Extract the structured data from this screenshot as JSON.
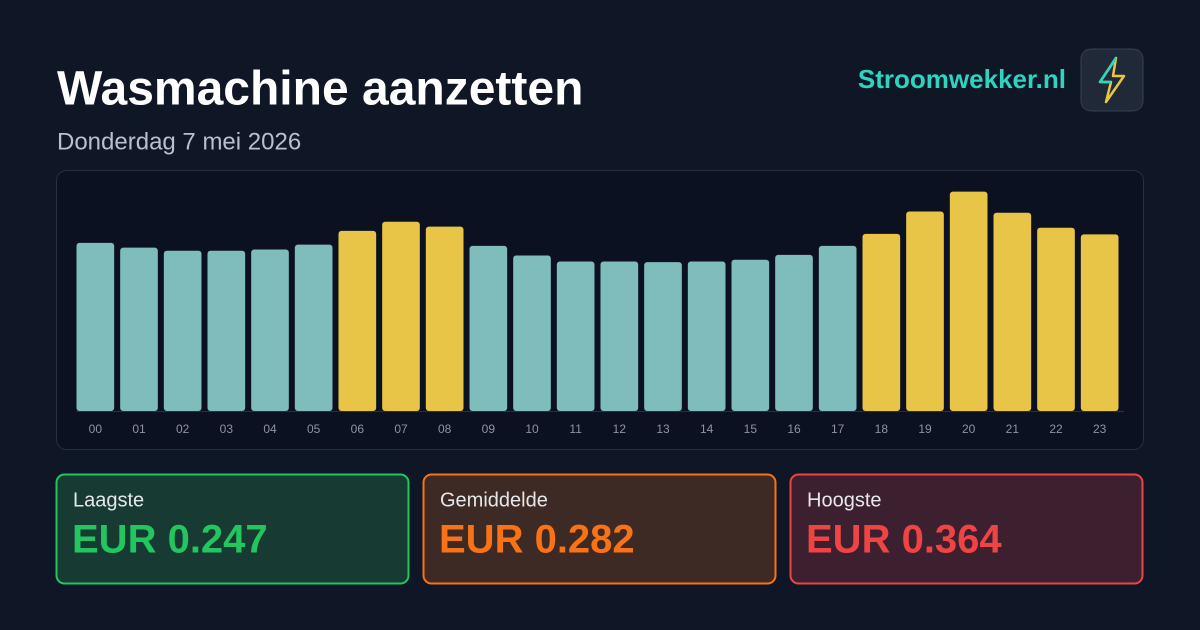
{
  "chart_data": {
    "type": "bar",
    "title": "Wasmachine aanzetten",
    "subtitle": "Donderdag 7 mei 2026",
    "brand": "Stroomwekker.nl",
    "categories": [
      "00",
      "01",
      "02",
      "03",
      "04",
      "05",
      "06",
      "07",
      "08",
      "09",
      "10",
      "11",
      "12",
      "13",
      "14",
      "15",
      "16",
      "17",
      "18",
      "19",
      "20",
      "21",
      "22",
      "23"
    ],
    "values": [
      0.279,
      0.271,
      0.266,
      0.266,
      0.268,
      0.276,
      0.299,
      0.314,
      0.306,
      0.274,
      0.258,
      0.248,
      0.248,
      0.247,
      0.248,
      0.251,
      0.259,
      0.274,
      0.294,
      0.331,
      0.364,
      0.329,
      0.304,
      0.293
    ],
    "colors": [
      "#7fbcbc",
      "#7fbcbc",
      "#7fbcbc",
      "#7fbcbc",
      "#7fbcbc",
      "#7fbcbc",
      "#e8c547",
      "#e8c547",
      "#e8c547",
      "#7fbcbc",
      "#7fbcbc",
      "#7fbcbc",
      "#7fbcbc",
      "#7fbcbc",
      "#7fbcbc",
      "#7fbcbc",
      "#7fbcbc",
      "#7fbcbc",
      "#e8c547",
      "#e8c547",
      "#e8c547",
      "#e8c547",
      "#e8c547",
      "#e8c547"
    ],
    "ylim": [
      0,
      0.38
    ]
  },
  "summary": [
    {
      "label": "Laagste",
      "value": "EUR 0.247"
    },
    {
      "label": "Gemiddelde",
      "value": "EUR 0.282"
    },
    {
      "label": "Hoogste",
      "value": "EUR 0.364"
    }
  ]
}
